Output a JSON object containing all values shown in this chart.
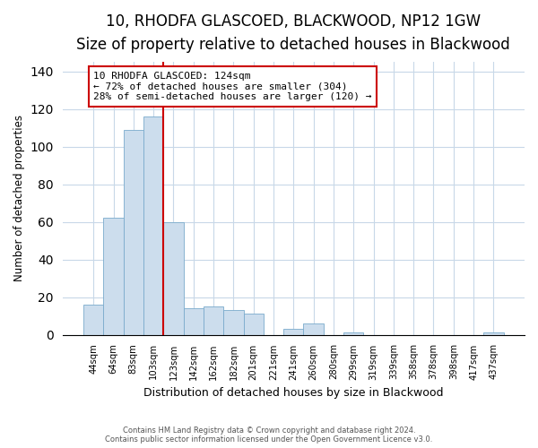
{
  "title": "10, RHODFA GLASCOED, BLACKWOOD, NP12 1GW",
  "subtitle": "Size of property relative to detached houses in Blackwood",
  "xlabel": "Distribution of detached houses by size in Blackwood",
  "ylabel": "Number of detached properties",
  "bar_labels": [
    "44sqm",
    "64sqm",
    "83sqm",
    "103sqm",
    "123sqm",
    "142sqm",
    "162sqm",
    "182sqm",
    "201sqm",
    "221sqm",
    "241sqm",
    "260sqm",
    "280sqm",
    "299sqm",
    "319sqm",
    "339sqm",
    "358sqm",
    "378sqm",
    "398sqm",
    "417sqm",
    "437sqm"
  ],
  "bar_values": [
    16,
    62,
    109,
    116,
    60,
    14,
    15,
    13,
    11,
    0,
    3,
    6,
    0,
    1,
    0,
    0,
    0,
    0,
    0,
    0,
    1
  ],
  "bar_color": "#ccdded",
  "bar_edge_color": "#7aabcc",
  "vline_x_index": 4,
  "vline_color": "#cc0000",
  "ylim": [
    0,
    145
  ],
  "annotation_text": "10 RHODFA GLASCOED: 124sqm\n← 72% of detached houses are smaller (304)\n28% of semi-detached houses are larger (120) →",
  "annotation_box_color": "#ffffff",
  "annotation_box_edge": "#cc0000",
  "footer_line1": "Contains HM Land Registry data © Crown copyright and database right 2024.",
  "footer_line2": "Contains public sector information licensed under the Open Government Licence v3.0.",
  "title_fontsize": 12,
  "subtitle_fontsize": 10,
  "yticks": [
    0,
    20,
    40,
    60,
    80,
    100,
    120,
    140
  ],
  "background_color": "#ffffff",
  "grid_color": "#c8d8e8"
}
